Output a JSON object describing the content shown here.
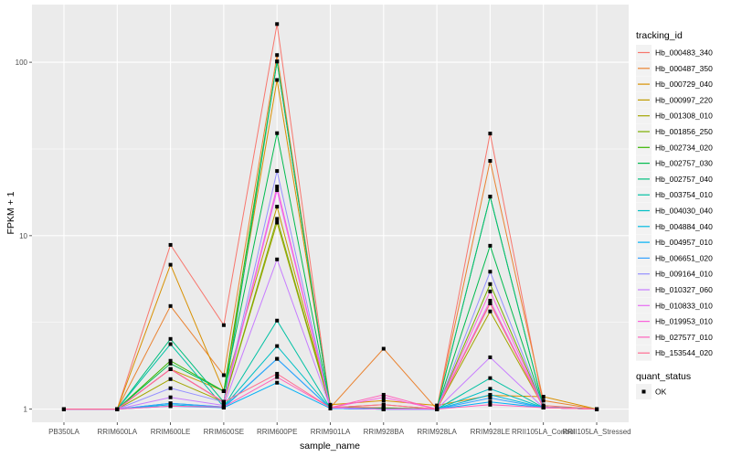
{
  "chart_data": {
    "type": "line",
    "xlabel": "sample_name",
    "ylabel": "FPKM + 1",
    "y_scale": "log10",
    "ylim": [
      0.84,
      215
    ],
    "y_ticks": [
      1,
      10,
      100
    ],
    "y_tick_labels": [
      "1",
      "10",
      "100"
    ],
    "grid": true,
    "legend_position": "right",
    "categories": [
      "PB350LA",
      "RRIM600LA",
      "RRIM600LE",
      "RRIM600SE",
      "RRIM600PE",
      "RRIM901LA",
      "RRIM928BA",
      "RRIM928LA",
      "RRIM928LE",
      "RRII105LA_Control",
      "RRII105LA_Stressed"
    ],
    "legend_title": "tracking_id",
    "series": [
      {
        "name": "Hb_000483_340",
        "color": "#F8766D",
        "values": [
          1,
          1,
          8.85,
          3.05,
          166,
          1.03,
          1.02,
          1.0,
          38.8,
          1.05,
          1
        ]
      },
      {
        "name": "Hb_000487_350",
        "color": "#EA8331",
        "values": [
          1,
          1,
          3.93,
          1.57,
          110,
          1.02,
          2.23,
          1.0,
          27,
          1.12,
          1
        ]
      },
      {
        "name": "Hb_000729_040",
        "color": "#D89000",
        "values": [
          1,
          1,
          6.8,
          1.27,
          79,
          1.06,
          1.12,
          1.05,
          1.2,
          1.18,
          1
        ]
      },
      {
        "name": "Hb_000997_220",
        "color": "#C09B00",
        "values": [
          1,
          1,
          1.7,
          1.27,
          14.7,
          1.02,
          1.06,
          1.0,
          4.07,
          1.03,
          1
        ]
      },
      {
        "name": "Hb_001308_010",
        "color": "#A3A500",
        "values": [
          1,
          1,
          1.49,
          1.1,
          11.9,
          1.02,
          1.01,
          1.0,
          3.66,
          1.03,
          1
        ]
      },
      {
        "name": "Hb_001856_250",
        "color": "#7CAE00",
        "values": [
          1,
          1,
          1.7,
          1.1,
          12.5,
          1.02,
          1.01,
          1.0,
          5.26,
          1.03,
          1
        ]
      },
      {
        "name": "Hb_002734_020",
        "color": "#39B600",
        "values": [
          1,
          1,
          1.9,
          1.27,
          101,
          1.02,
          1.01,
          1.0,
          16.8,
          1.03,
          1
        ]
      },
      {
        "name": "Hb_002757_030",
        "color": "#00BB4E",
        "values": [
          1,
          1,
          1.83,
          1.27,
          39,
          1.02,
          1.01,
          1.0,
          8.75,
          1.03,
          1
        ]
      },
      {
        "name": "Hb_002757_040",
        "color": "#00BF7D",
        "values": [
          1,
          1,
          2.54,
          1.1,
          101,
          1.02,
          1.0,
          1.0,
          16.8,
          1.03,
          1
        ]
      },
      {
        "name": "Hb_003754_010",
        "color": "#00C1A3",
        "values": [
          1,
          1,
          2.37,
          1.03,
          3.24,
          1.01,
          1.0,
          1.0,
          1.51,
          1.02,
          1
        ]
      },
      {
        "name": "Hb_004030_040",
        "color": "#00BFC4",
        "values": [
          1,
          1,
          1.08,
          1.03,
          2.31,
          1.01,
          1.0,
          1.0,
          1.31,
          1.02,
          1
        ]
      },
      {
        "name": "Hb_004884_040",
        "color": "#00BAE0",
        "values": [
          1,
          1,
          1.06,
          1.02,
          1.95,
          1.01,
          1.0,
          1.0,
          1.21,
          1.02,
          1
        ]
      },
      {
        "name": "Hb_004957_010",
        "color": "#00B0F6",
        "values": [
          1,
          1,
          1.04,
          1.02,
          1.42,
          1.01,
          1.0,
          1.0,
          1.1,
          1.02,
          1
        ]
      },
      {
        "name": "Hb_006651_020",
        "color": "#35A2FF",
        "values": [
          1,
          1,
          1.08,
          1.03,
          1.95,
          1.01,
          1.0,
          1.0,
          1.16,
          1.02,
          1
        ]
      },
      {
        "name": "Hb_009164_010",
        "color": "#9590FF",
        "values": [
          1,
          1,
          1.32,
          1.1,
          23.6,
          1.02,
          1.0,
          1.0,
          6.2,
          1.03,
          1
        ]
      },
      {
        "name": "Hb_010327_060",
        "color": "#C77CFF",
        "values": [
          1,
          1,
          1.17,
          1.05,
          7.3,
          1.02,
          1.0,
          1.0,
          1.99,
          1.02,
          1
        ]
      },
      {
        "name": "Hb_010833_010",
        "color": "#E76BF3",
        "values": [
          1,
          1,
          1.7,
          1.1,
          18.3,
          1.02,
          1.0,
          1.0,
          4.22,
          1.02,
          1
        ]
      },
      {
        "name": "Hb_019953_010",
        "color": "#FA62DB",
        "values": [
          1,
          1,
          1.7,
          1.1,
          19.2,
          1.02,
          1.17,
          1.0,
          4.77,
          1.02,
          1
        ]
      },
      {
        "name": "Hb_027577_010",
        "color": "#FF62BC",
        "values": [
          1,
          1,
          1.04,
          1.03,
          1.53,
          1.02,
          1.21,
          1.0,
          1.06,
          1.02,
          1
        ]
      },
      {
        "name": "Hb_153544_020",
        "color": "#FF6C91",
        "values": [
          1,
          1,
          1.7,
          1.1,
          1.6,
          1.02,
          1.06,
          1.0,
          4.07,
          1.02,
          1
        ]
      }
    ],
    "shape_legend_title": "quant_status",
    "shape_legend_items": [
      "OK"
    ]
  }
}
